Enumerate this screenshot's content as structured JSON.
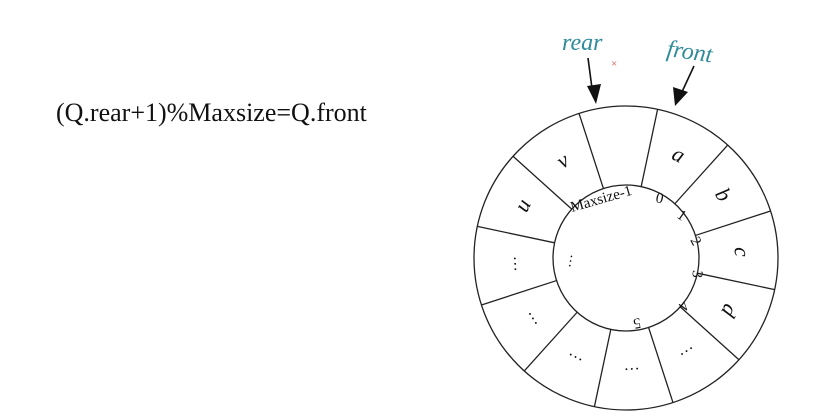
{
  "formula": "(Q.rear+1)%Maxsize=Q.front",
  "pointers": {
    "rear": {
      "label": "rear",
      "color": "#2e8b99"
    },
    "front": {
      "label": "front",
      "color": "#2e8b99"
    }
  },
  "marker": {
    "glyph": "×",
    "color": "#d9534f"
  },
  "queue": {
    "outer_cells": [
      "",
      "a",
      "b",
      "c",
      "d",
      "…",
      "…",
      "…",
      "…",
      "…",
      "u",
      "v"
    ],
    "inner_indices": [
      "Maxsize-1",
      "0",
      "1",
      "2",
      "3",
      "4",
      "5",
      "…"
    ]
  }
}
